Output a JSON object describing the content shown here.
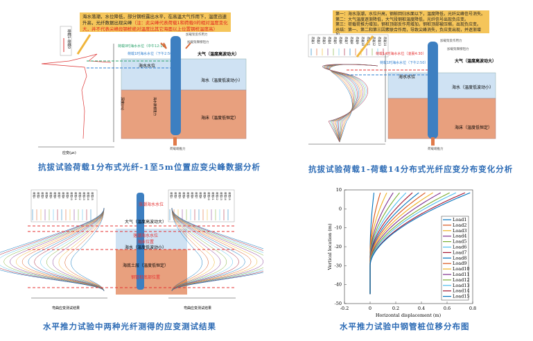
{
  "panel1": {
    "callout_black": "海水落潮，水位降低，部分钢桩露出水平，在高温大气作用下，温度迅速升高，光纤数据出现尖峰",
    "callout_red": "（注：此尖峰代表荷载1和荷载0的相对温度变化大，并不代表尖峰段钢桩绝对温度比其它海面以上位置钢桩温度高）",
    "label_load0": "荷载0时海水水位（中午12:10）",
    "label_load1": "荷载1时海水水位（下午2:50）",
    "air": "大气（温度高波动大）",
    "sea_level": "海水水位",
    "water": "海水（温度低波动小）",
    "seabed": "海床（温度低恒定）",
    "force_top1": "加载架反作用力",
    "force_top2": "加载架摩擦阻力",
    "force_bottom": "荷载端推力",
    "friction": "海水摩擦阻力",
    "xlabel": "应变(με)",
    "ylabel": "深度(m)",
    "legend": [
      "荷载1-荷载0"
    ],
    "caption": "抗拔试验荷载1分布式光纤-1至5m位置应变尖峰数据分析"
  },
  "panel2": {
    "callout_lines": [
      "第一：海水涨潮，水位升高，钢桩回归水面以下，温度降低，光纤尖峰信号消失。",
      "第二：大气温度逐渐降低，大气段钢桩温度降低，光纤信号出现负应变。",
      "第三：荷载荷推力增加，钢桩顶部反作用增加，钢桩顶部被压缩，出现负应变。",
      "总结：第一、第二和第三因素联合作用，导致尖峰消失，负应变出现，并逐渐增加。"
    ],
    "legend": [
      "荷载1",
      "荷载2",
      "荷载3",
      "荷载4",
      "荷载5",
      "荷载6",
      "荷载7",
      "荷载8",
      "荷载9",
      "荷载10",
      "荷载11",
      "荷载12",
      "荷载13",
      "荷载14"
    ],
    "label_load14": "荷载14时海水水位（凌晨4:30）",
    "label_load1": "荷载1时海水水位（下午2:50）",
    "air": "大气（温度高波动大）",
    "sea_level": "海水水位",
    "water": "海水（温度低波动小）",
    "seabed": "海床（温度低恒定）",
    "force_top1": "加载架反作用力",
    "force_top2": "加载架摩擦阻力",
    "force_bottom": "荷载端推力",
    "caption": "抗拔试验荷载1-荷载14分布式光纤应变分布变化分析"
  },
  "panel3": {
    "high_tide": "涨潮海水水位",
    "low_tide": "落潮海水水位",
    "seabed_pos": "海床位置",
    "pile_bottom": "钢管桩底部位置",
    "air": "大气（温度高波动大）",
    "water": "海水（温度低波动小）",
    "soil": "海底土层（温度低恒定）",
    "xlabel_left": "弯曲应变测试结果",
    "xlabel_right": "弯曲应变测试结果",
    "legend": [
      "荷载1",
      "荷载2",
      "荷载3",
      "荷载4",
      "荷载5",
      "荷载6",
      "荷载7",
      "荷载8",
      "荷载9",
      "荷载10",
      "荷载11",
      "荷载12",
      "荷载13",
      "荷载14",
      "荷载15"
    ],
    "caption": "水平推力试验中两种光纤测得的应变测试结果"
  },
  "chart_data": {
    "type": "line",
    "xlabel": "Horizontal displacement (m)",
    "ylabel": "Vertical location (m)",
    "xlim": [
      -0.2,
      0.8
    ],
    "ylim": [
      -50,
      10
    ],
    "xticks": [
      "-0.2",
      "0",
      "0.2",
      "0.4",
      "0.6",
      "0.8"
    ],
    "yticks": [
      "10",
      "0",
      "-10",
      "-20",
      "-30",
      "-40",
      "-50"
    ],
    "legend_position": "right",
    "y_range": [
      -45,
      8.5
    ],
    "series": [
      {
        "name": "Load1",
        "top_displacement": 0.03,
        "fixity_depth": -22,
        "color": "#0072BD"
      },
      {
        "name": "Load2",
        "top_displacement": 0.08,
        "fixity_depth": -23,
        "color": "#D95319"
      },
      {
        "name": "Load3",
        "top_displacement": 0.13,
        "fixity_depth": -24,
        "color": "#EDB120"
      },
      {
        "name": "Load4",
        "top_displacement": 0.18,
        "fixity_depth": -25,
        "color": "#7E2F8E"
      },
      {
        "name": "Load5",
        "top_displacement": 0.23,
        "fixity_depth": -25.5,
        "color": "#77AC30"
      },
      {
        "name": "Load6",
        "top_displacement": 0.28,
        "fixity_depth": -26,
        "color": "#4DBEEE"
      },
      {
        "name": "Load7",
        "top_displacement": 0.33,
        "fixity_depth": -26.5,
        "color": "#A2142F"
      },
      {
        "name": "Load8",
        "top_displacement": 0.38,
        "fixity_depth": -27,
        "color": "#0072BD"
      },
      {
        "name": "Load9",
        "top_displacement": 0.43,
        "fixity_depth": -27.5,
        "color": "#D95319"
      },
      {
        "name": "Load10",
        "top_displacement": 0.49,
        "fixity_depth": -28,
        "color": "#EDB120"
      },
      {
        "name": "Load11",
        "top_displacement": 0.55,
        "fixity_depth": -28.5,
        "color": "#7E2F8E"
      },
      {
        "name": "Load12",
        "top_displacement": 0.62,
        "fixity_depth": -29,
        "color": "#77AC30"
      },
      {
        "name": "Load13",
        "top_displacement": 0.67,
        "fixity_depth": -29.5,
        "color": "#4DBEEE"
      },
      {
        "name": "Load14",
        "top_displacement": 0.74,
        "fixity_depth": -30,
        "color": "#A2142F"
      },
      {
        "name": "Load15",
        "top_displacement": 0.78,
        "fixity_depth": -30,
        "color": "#0072BD"
      }
    ],
    "caption": "水平推力试验中钢管桩位移分布图"
  },
  "colors": {
    "air": "#ffffff",
    "water": "#cfe2f3",
    "seabed": "#e8a07e",
    "pile": "#3d7fc1",
    "callout": "#f5c55a",
    "caption": "#2c6bb5"
  }
}
